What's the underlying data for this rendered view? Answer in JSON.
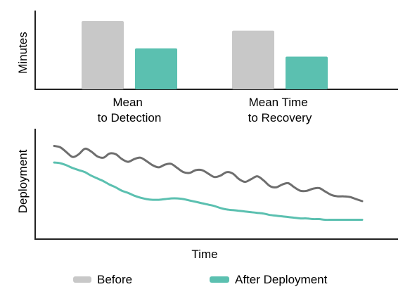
{
  "colors": {
    "before": "#c8c8c8",
    "after": "#5bc0b0",
    "before_line": "#6e6e6e",
    "axis": "#222222"
  },
  "chart_data": [
    {
      "type": "bar",
      "ylabel": "Minutes",
      "categories": [
        "Mean\nto Detection",
        "Mean Time\nto Recovery"
      ],
      "series": [
        {
          "name": "Before",
          "values": [
            100,
            86
          ]
        },
        {
          "name": "After Deployment",
          "values": [
            60,
            48
          ]
        }
      ],
      "ylim": [
        0,
        100
      ],
      "grid": false,
      "legend_position": "bottom"
    },
    {
      "type": "line",
      "xlabel": "Time",
      "ylabel": "Deployment",
      "x": [
        0,
        2,
        4,
        6,
        8,
        10,
        12,
        14,
        16,
        18,
        20,
        22,
        24,
        26,
        28,
        30,
        32,
        34,
        36,
        38,
        40,
        42,
        44,
        46,
        48,
        50,
        52,
        54,
        56,
        58,
        60,
        62,
        64,
        66,
        68,
        70,
        72,
        74,
        76,
        78,
        80,
        82,
        84,
        86,
        88,
        90,
        92,
        94,
        96,
        98,
        100
      ],
      "series": [
        {
          "name": "Before",
          "values": [
            95,
            93,
            86,
            79,
            83,
            91,
            87,
            80,
            78,
            84,
            83,
            76,
            72,
            76,
            78,
            73,
            67,
            64,
            68,
            69,
            63,
            57,
            56,
            60,
            60,
            55,
            50,
            52,
            57,
            55,
            47,
            43,
            47,
            51,
            45,
            37,
            35,
            39,
            41,
            35,
            30,
            30,
            33,
            34,
            29,
            24,
            22,
            22,
            21,
            18,
            15
          ]
        },
        {
          "name": "After Deployment",
          "values": [
            71,
            70,
            67,
            63,
            60,
            57,
            52,
            48,
            44,
            39,
            35,
            30,
            27,
            23,
            20,
            18,
            17,
            17,
            18,
            19,
            19,
            18,
            16,
            14,
            12,
            10,
            8,
            5,
            3,
            2,
            1,
            0,
            -1,
            -2,
            -3,
            -5,
            -6,
            -7,
            -8,
            -9,
            -10,
            -10,
            -11,
            -11,
            -12,
            -12,
            -12,
            -12,
            -12,
            -12,
            -12
          ]
        }
      ],
      "ylim": [
        -40,
        120
      ],
      "grid": false,
      "legend_position": "bottom"
    }
  ],
  "legend": [
    {
      "label": "Before"
    },
    {
      "label": "After Deployment"
    }
  ]
}
